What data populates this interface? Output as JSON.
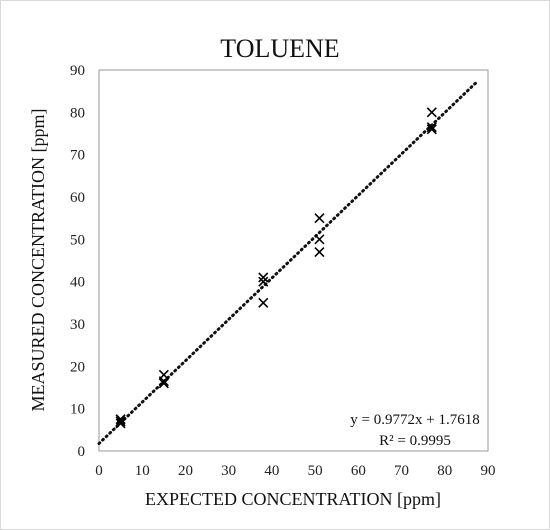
{
  "chart_data": {
    "type": "scatter",
    "title": "TOLUENE",
    "xlabel": "EXPECTED CONCENTRATION [ppm]",
    "ylabel": "MEASURED CONCENTRATION [ppm]",
    "xlim": [
      0,
      90
    ],
    "ylim": [
      0,
      90
    ],
    "xticks": [
      0,
      10,
      20,
      30,
      40,
      50,
      60,
      70,
      80,
      90
    ],
    "yticks": [
      0,
      10,
      20,
      30,
      40,
      50,
      60,
      70,
      80,
      90
    ],
    "grid": false,
    "border": true,
    "marker": "x",
    "marker_color": "#000000",
    "series": [
      {
        "points": [
          {
            "x": 5,
            "y": 7.5
          },
          {
            "x": 5,
            "y": 7
          },
          {
            "x": 5,
            "y": 6.5
          },
          {
            "x": 15,
            "y": 18
          },
          {
            "x": 15,
            "y": 16.5
          },
          {
            "x": 15,
            "y": 16
          },
          {
            "x": 38,
            "y": 41
          },
          {
            "x": 38,
            "y": 40
          },
          {
            "x": 38,
            "y": 35
          },
          {
            "x": 51,
            "y": 55
          },
          {
            "x": 51,
            "y": 50
          },
          {
            "x": 51,
            "y": 47
          },
          {
            "x": 77,
            "y": 80
          },
          {
            "x": 77,
            "y": 76.5
          },
          {
            "x": 77,
            "y": 76
          }
        ]
      }
    ],
    "trendline": {
      "type": "linear",
      "style": "dotted",
      "slope": 0.9772,
      "intercept": 1.7618,
      "x_range": [
        0,
        87.5
      ],
      "equation_label": "y = 0.9772x + 1.7618",
      "r2_label": "R² = 0.9995"
    }
  }
}
